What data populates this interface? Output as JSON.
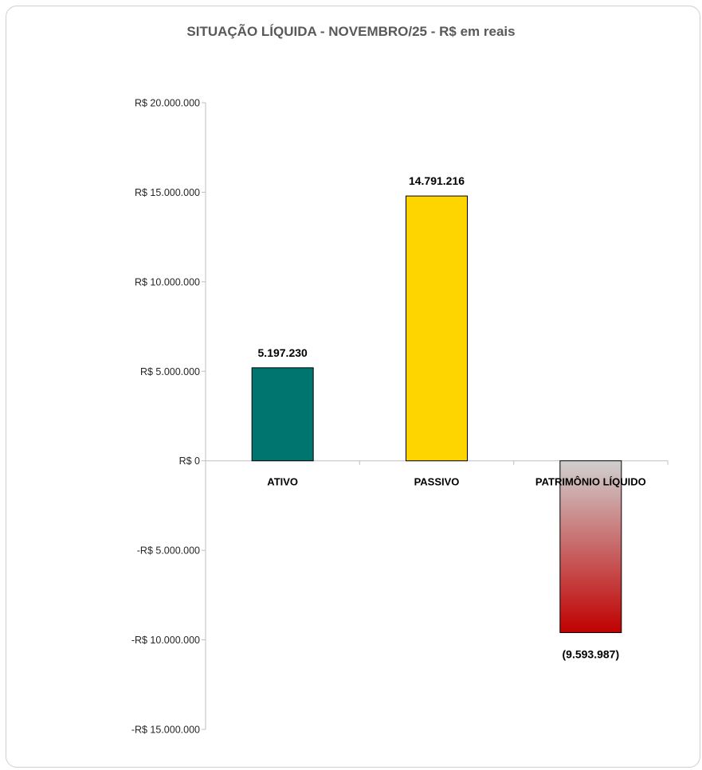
{
  "chart_data": {
    "type": "bar",
    "title": "SITUAÇÃO LÍQUIDA - NOVEMBRO/25 - R$ em reais",
    "categories": [
      "ATIVO",
      "PASSIVO",
      "PATRIMÔNIO LÍQUIDO"
    ],
    "values": [
      5197230,
      14791216,
      -9593987
    ],
    "data_labels": [
      "5.197.230",
      "14.791.216",
      "(9.593.987)"
    ],
    "colors": [
      "#007570",
      "#FFD500",
      "gradient:#D0D0D0-#C00000"
    ],
    "ylim": [
      -15000000,
      20000000
    ],
    "yticks": [
      20000000,
      15000000,
      10000000,
      5000000,
      0,
      -5000000,
      -10000000,
      -15000000
    ],
    "ytick_labels": [
      "R$ 20.000.000",
      "R$ 15.000.000",
      "R$ 10.000.000",
      "R$ 5.000.000",
      "R$ 0",
      "-R$ 5.000.000",
      "-R$ 10.000.000",
      "-R$ 15.000.000"
    ],
    "xlabel": "",
    "ylabel": "",
    "grid": false,
    "legend": "none"
  }
}
